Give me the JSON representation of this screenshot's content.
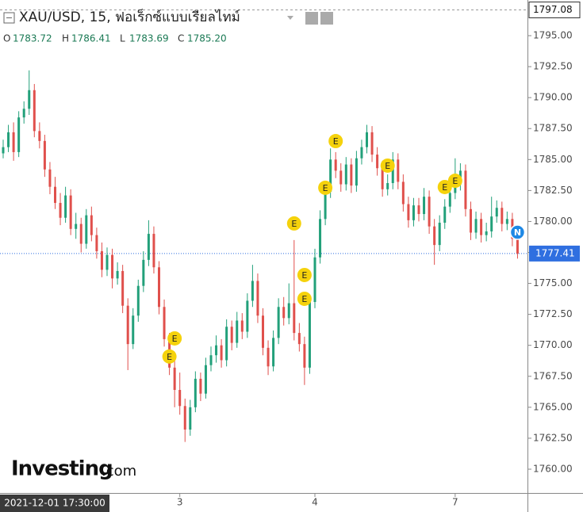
{
  "chart_data": {
    "type": "candlestick",
    "title": "XAU/USD, 15, ฟอเร็กซ์แบบเรียลไทม์",
    "ohlc_legend": [
      {
        "label": "O",
        "value": "1783.72"
      },
      {
        "label": "H",
        "value": "1786.41"
      },
      {
        "label": "L",
        "value": "1783.69"
      },
      {
        "label": "C",
        "value": "1785.20"
      }
    ],
    "watermark": {
      "brand": "Investing",
      "suffix": ".com"
    },
    "cursor_label": "2021-12-01 17:30:00",
    "up_color": "#22a07a",
    "down_color": "#e0504c",
    "ylim": [
      1758.08,
      1797.88
    ],
    "yticks": [
      {
        "value": 1760,
        "label": "1760.00"
      },
      {
        "value": 1762.5,
        "label": "1762.50"
      },
      {
        "value": 1765,
        "label": "1765.00"
      },
      {
        "value": 1767.5,
        "label": "1767.50"
      },
      {
        "value": 1770,
        "label": "1770.00"
      },
      {
        "value": 1772.5,
        "label": "1772.50"
      },
      {
        "value": 1775,
        "label": "1775.00"
      },
      {
        "value": 1777.5,
        "label": "1777.50"
      },
      {
        "value": 1780,
        "label": "1780.00"
      },
      {
        "value": 1782.5,
        "label": "1782.50"
      },
      {
        "value": 1785,
        "label": "1785.00"
      },
      {
        "value": 1787.5,
        "label": "1787.50"
      },
      {
        "value": 1790,
        "label": "1790.00"
      },
      {
        "value": 1792.5,
        "label": "1792.50"
      },
      {
        "value": 1795,
        "label": "1795.00"
      }
    ],
    "high_line": {
      "value": 1797.08,
      "label": "1797.08"
    },
    "last_price": {
      "value": 1777.41,
      "label": "1777.41",
      "color": "#2f6fe0"
    },
    "categories": [
      null,
      null,
      null,
      null,
      null,
      null,
      null,
      null,
      null,
      null,
      null,
      null,
      null,
      null,
      null,
      null,
      null,
      null,
      null,
      null,
      null,
      null,
      null,
      null,
      null,
      null,
      null,
      null,
      null,
      null,
      null,
      null,
      null,
      null,
      "3",
      null,
      null,
      null,
      null,
      null,
      null,
      null,
      null,
      null,
      null,
      null,
      null,
      null,
      null,
      null,
      null,
      null,
      null,
      null,
      null,
      null,
      null,
      null,
      null,
      null,
      "4",
      null,
      null,
      null,
      null,
      null,
      null,
      null,
      null,
      null,
      null,
      null,
      null,
      null,
      null,
      null,
      null,
      null,
      null,
      null,
      null,
      null,
      null,
      null,
      null,
      null,
      null,
      "7",
      null,
      null,
      null,
      null,
      null,
      null,
      null,
      null,
      null,
      null,
      null,
      null
    ],
    "open": [
      1785.5,
      1786.0,
      1787.2,
      1785.6,
      1788.4,
      1789.1,
      1790.6,
      1787.3,
      1786.5,
      1784.2,
      1782.8,
      1781.5,
      1780.3,
      1782.1,
      1779.4,
      1779.8,
      1778.2,
      1780.5,
      1778.9,
      1777.6,
      1776.1,
      1777.3,
      1775.4,
      1776.0,
      1773.2,
      1770.1,
      1772.4,
      1774.8,
      1776.9,
      1779.0,
      1776.3,
      1773.1,
      1770.5,
      1768.2,
      1766.4,
      1765.1,
      1763.2,
      1765.0,
      1767.3,
      1766.1,
      1768.4,
      1769.2,
      1770.0,
      1768.8,
      1771.5,
      1770.2,
      1772.0,
      1771.1,
      1773.6,
      1775.2,
      1772.4,
      1769.8,
      1768.3,
      1770.6,
      1773.1,
      1772.2,
      1773.4,
      1771.0,
      1770.1,
      1768.2,
      1773.5,
      1777.1,
      1780.2,
      1782.4,
      1785.0,
      1784.1,
      1783.0,
      1784.6,
      1782.9,
      1785.1,
      1786.0,
      1787.2,
      1785.4,
      1784.3,
      1782.6,
      1783.1,
      1785.0,
      1783.2,
      1781.4,
      1780.1,
      1781.3,
      1780.6,
      1782.0,
      1779.6,
      1778.1,
      1779.9,
      1781.2,
      1782.3,
      1783.0,
      1784.1,
      1781.0,
      1779.1,
      1780.2,
      1778.9,
      1779.2,
      1780.4,
      1781.1,
      1779.8,
      1780.2,
      1778.6
    ],
    "high": [
      1786.6,
      1787.8,
      1788.0,
      1788.9,
      1789.7,
      1792.2,
      1791.1,
      1788.0,
      1787.0,
      1784.8,
      1783.6,
      1782.3,
      1782.8,
      1782.6,
      1780.7,
      1780.3,
      1781.0,
      1781.2,
      1779.5,
      1778.3,
      1777.9,
      1777.8,
      1776.7,
      1776.5,
      1773.8,
      1773.0,
      1775.3,
      1777.6,
      1780.1,
      1779.6,
      1776.8,
      1773.7,
      1771.0,
      1768.9,
      1767.8,
      1765.7,
      1765.6,
      1767.9,
      1767.8,
      1769.0,
      1769.9,
      1770.8,
      1770.5,
      1772.1,
      1772.0,
      1772.7,
      1772.6,
      1774.2,
      1776.5,
      1775.8,
      1773.0,
      1770.4,
      1771.2,
      1773.8,
      1773.9,
      1775.0,
      1778.5,
      1771.8,
      1770.7,
      1774.1,
      1777.8,
      1780.9,
      1783.0,
      1785.9,
      1785.6,
      1784.7,
      1785.2,
      1785.1,
      1785.7,
      1786.6,
      1787.8,
      1787.7,
      1786.0,
      1784.9,
      1783.8,
      1785.6,
      1785.5,
      1783.8,
      1782.0,
      1781.9,
      1781.9,
      1782.7,
      1782.5,
      1780.2,
      1780.5,
      1781.8,
      1783.0,
      1785.1,
      1784.7,
      1784.6,
      1781.6,
      1780.8,
      1780.7,
      1779.9,
      1782.0,
      1781.7,
      1781.6,
      1780.8,
      1780.7,
      1779.1
    ],
    "low": [
      1785.1,
      1785.6,
      1784.9,
      1785.2,
      1787.9,
      1788.6,
      1786.8,
      1785.9,
      1783.6,
      1782.2,
      1781.0,
      1779.7,
      1779.9,
      1778.9,
      1778.6,
      1777.5,
      1777.8,
      1778.4,
      1777.0,
      1775.5,
      1775.6,
      1774.6,
      1774.9,
      1772.6,
      1768.0,
      1769.7,
      1771.9,
      1774.3,
      1776.4,
      1775.8,
      1772.5,
      1769.9,
      1767.6,
      1765.0,
      1764.4,
      1762.2,
      1762.7,
      1764.6,
      1765.5,
      1765.7,
      1767.9,
      1768.6,
      1768.2,
      1768.3,
      1769.6,
      1769.8,
      1770.5,
      1770.6,
      1773.1,
      1771.8,
      1769.2,
      1767.6,
      1767.9,
      1770.1,
      1771.6,
      1771.7,
      1770.4,
      1769.5,
      1766.8,
      1767.7,
      1773.0,
      1776.6,
      1779.7,
      1781.9,
      1783.5,
      1782.4,
      1782.5,
      1782.3,
      1782.4,
      1784.6,
      1785.5,
      1784.8,
      1783.7,
      1782.0,
      1782.1,
      1782.6,
      1782.6,
      1780.8,
      1779.5,
      1779.6,
      1780.0,
      1780.1,
      1779.0,
      1776.5,
      1777.6,
      1779.4,
      1780.7,
      1781.8,
      1782.5,
      1780.4,
      1778.5,
      1778.6,
      1778.3,
      1778.4,
      1778.7,
      1779.9,
      1779.2,
      1779.3,
      1778.0,
      1777.0
    ],
    "close": [
      1786.0,
      1787.2,
      1785.6,
      1788.4,
      1789.1,
      1790.6,
      1787.3,
      1786.5,
      1784.2,
      1782.8,
      1781.5,
      1780.3,
      1782.1,
      1779.4,
      1779.8,
      1778.2,
      1780.5,
      1778.9,
      1777.6,
      1776.1,
      1777.3,
      1775.4,
      1776.0,
      1773.2,
      1770.1,
      1772.4,
      1774.8,
      1776.9,
      1779.0,
      1776.3,
      1773.1,
      1770.5,
      1768.2,
      1766.4,
      1765.1,
      1763.2,
      1765.0,
      1767.3,
      1766.1,
      1768.4,
      1769.2,
      1770.0,
      1768.8,
      1771.5,
      1770.2,
      1772.0,
      1771.1,
      1773.6,
      1775.2,
      1772.4,
      1769.8,
      1768.3,
      1770.6,
      1773.1,
      1772.2,
      1773.4,
      1771.0,
      1770.1,
      1768.2,
      1773.5,
      1777.1,
      1780.2,
      1782.4,
      1785.0,
      1784.1,
      1783.0,
      1784.6,
      1782.9,
      1785.1,
      1786.0,
      1787.2,
      1785.4,
      1784.3,
      1782.6,
      1783.1,
      1785.0,
      1783.2,
      1781.4,
      1780.1,
      1781.3,
      1780.6,
      1782.0,
      1779.6,
      1778.1,
      1779.9,
      1781.2,
      1782.3,
      1783.0,
      1784.1,
      1781.0,
      1779.1,
      1780.2,
      1778.9,
      1779.2,
      1780.4,
      1781.1,
      1779.8,
      1780.2,
      1778.6,
      1777.41
    ],
    "events": [
      {
        "index": 33,
        "value": 1770.56,
        "label": "E"
      },
      {
        "index": 32,
        "value": 1769.1,
        "label": "E"
      },
      {
        "index": 56,
        "value": 1779.84,
        "label": "E"
      },
      {
        "index": 58,
        "value": 1775.68,
        "label": "E"
      },
      {
        "index": 58,
        "value": 1773.76,
        "label": "E"
      },
      {
        "index": 62,
        "value": 1782.72,
        "label": "E"
      },
      {
        "index": 64,
        "value": 1786.49,
        "label": "E"
      },
      {
        "index": 74,
        "value": 1784.51,
        "label": "E"
      },
      {
        "index": 85,
        "value": 1782.78,
        "label": "E"
      },
      {
        "index": 87,
        "value": 1783.29,
        "label": "E"
      }
    ],
    "news": {
      "index": 99,
      "value": 1779.13,
      "label": "N"
    }
  }
}
